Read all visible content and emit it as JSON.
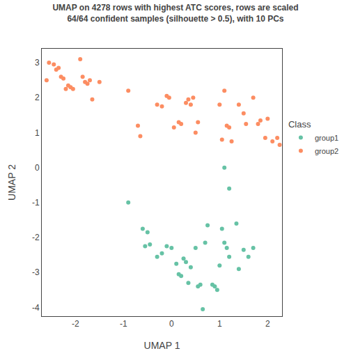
{
  "chart_data": {
    "type": "scatter",
    "title": "UMAP on 4278 rows with highest ATC scores, rows are scaled\n64/64 confident samples (silhouette > 0.5), with 10 PCs",
    "xlabel": "UMAP 1",
    "ylabel": "UMAP 2",
    "xlim": [
      -2.7,
      2.3
    ],
    "ylim": [
      -4.25,
      3.4
    ],
    "xticks": [
      -2,
      -1,
      0,
      1,
      2
    ],
    "yticks": [
      -4,
      -3,
      -2,
      -1,
      0,
      1,
      2,
      3
    ],
    "grid": false,
    "legend": "right",
    "legend_title": "Class",
    "marker": "circle",
    "series": [
      {
        "name": "group1",
        "color": "#66C2A5",
        "x": [
          1.1,
          1.2,
          -0.9,
          -0.6,
          -0.5,
          -0.55,
          -0.45,
          -0.3,
          -0.2,
          -0.1,
          0.0,
          0.1,
          0.15,
          0.2,
          0.25,
          0.3,
          0.35,
          0.4,
          0.5,
          0.55,
          0.6,
          0.65,
          0.7,
          0.75,
          0.85,
          0.9,
          0.95,
          1.0,
          1.05,
          1.1,
          1.15,
          1.2,
          1.35,
          1.4,
          1.5,
          1.6,
          1.7
        ],
        "y": [
          0.0,
          -0.6,
          -1.0,
          -1.75,
          -1.85,
          -2.25,
          -2.2,
          -2.55,
          -2.45,
          -2.25,
          -2.3,
          -2.75,
          -3.05,
          -3.1,
          -2.6,
          -2.7,
          -3.3,
          -2.85,
          -2.3,
          -3.4,
          -3.35,
          -4.05,
          -2.15,
          -1.65,
          -3.35,
          -3.4,
          -3.5,
          -2.8,
          -1.75,
          -2.15,
          -2.3,
          -2.55,
          -1.6,
          -2.9,
          -2.35,
          -2.55,
          -2.3
        ]
      },
      {
        "name": "group2",
        "color": "#FC8D62",
        "x": [
          -2.6,
          -2.55,
          -2.45,
          -2.4,
          -2.35,
          -2.3,
          -2.25,
          -2.2,
          -2.15,
          -2.1,
          -2.05,
          -1.9,
          -1.85,
          -1.8,
          -1.75,
          -1.7,
          -1.65,
          -1.5,
          -0.9,
          -0.7,
          -0.65,
          -0.3,
          -0.2,
          -0.1,
          -0.05,
          0.05,
          0.15,
          0.2,
          0.3,
          0.35,
          0.4,
          0.45,
          0.5,
          0.55,
          1.0,
          1.05,
          1.1,
          1.15,
          1.2,
          1.25,
          1.4,
          1.5,
          1.55,
          1.7,
          1.8,
          1.85,
          1.95,
          2.0,
          2.1,
          2.2,
          2.25
        ],
        "y": [
          2.5,
          3.0,
          2.95,
          2.8,
          2.85,
          2.6,
          2.55,
          2.25,
          2.35,
          2.3,
          2.25,
          3.1,
          2.6,
          2.45,
          2.4,
          2.5,
          1.95,
          2.45,
          2.2,
          1.2,
          0.9,
          1.8,
          1.75,
          2.05,
          2.0,
          1.15,
          1.3,
          1.25,
          1.85,
          1.95,
          1.8,
          2.0,
          1.0,
          1.3,
          1.8,
          0.8,
          2.2,
          1.2,
          1.15,
          0.75,
          1.8,
          1.55,
          1.25,
          2.0,
          1.25,
          1.35,
          0.85,
          1.4,
          0.75,
          0.85,
          0.65
        ]
      }
    ]
  }
}
